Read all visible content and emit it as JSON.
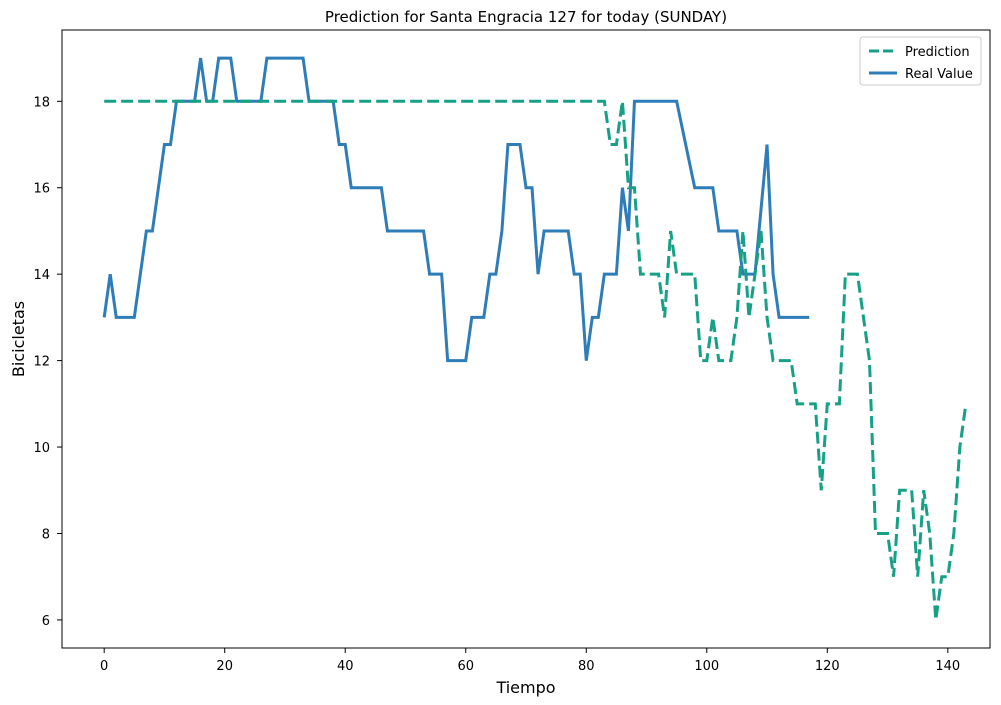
{
  "chart_data": {
    "type": "line",
    "title": "Prediction for Santa Engracia 127 for today (SUNDAY)",
    "xlabel": "Tiempo",
    "ylabel": "Bicicletas",
    "xlim": [
      -7,
      147
    ],
    "ylim": [
      5.35,
      19.65
    ],
    "xticks": [
      0,
      20,
      40,
      60,
      80,
      100,
      120,
      140
    ],
    "yticks": [
      6,
      8,
      10,
      12,
      14,
      16,
      18
    ],
    "grid": false,
    "legend_position": "top-right",
    "series": [
      {
        "name": "Prediction",
        "color": "#16a085",
        "style": "dashed",
        "points": [
          [
            0,
            18
          ],
          [
            83,
            18
          ],
          [
            84,
            17
          ],
          [
            85,
            17
          ],
          [
            86,
            18
          ],
          [
            87,
            16
          ],
          [
            88,
            16
          ],
          [
            89,
            14
          ],
          [
            91,
            14
          ],
          [
            92,
            14
          ],
          [
            93,
            13
          ],
          [
            94,
            15
          ],
          [
            95,
            14
          ],
          [
            98,
            14
          ],
          [
            99,
            12
          ],
          [
            100,
            12
          ],
          [
            101,
            13
          ],
          [
            102,
            12
          ],
          [
            104,
            12
          ],
          [
            105,
            13
          ],
          [
            106,
            15
          ],
          [
            107,
            13
          ],
          [
            108,
            14
          ],
          [
            109,
            15
          ],
          [
            110,
            13
          ],
          [
            111,
            12
          ],
          [
            113,
            12
          ],
          [
            114,
            12
          ],
          [
            115,
            11
          ],
          [
            117,
            11
          ],
          [
            118,
            11
          ],
          [
            119,
            9
          ],
          [
            120,
            11
          ],
          [
            122,
            11
          ],
          [
            123,
            14
          ],
          [
            125,
            14
          ],
          [
            127,
            12
          ],
          [
            128,
            8
          ],
          [
            130,
            8
          ],
          [
            131,
            7
          ],
          [
            132,
            9
          ],
          [
            134,
            9
          ],
          [
            135,
            7
          ],
          [
            136,
            9
          ],
          [
            137,
            8
          ],
          [
            138,
            6
          ],
          [
            139,
            7
          ],
          [
            140,
            7
          ],
          [
            141,
            8
          ],
          [
            142,
            10
          ],
          [
            143,
            11
          ]
        ]
      },
      {
        "name": "Real Value",
        "color": "#2e7db8",
        "style": "solid",
        "points": [
          [
            0,
            13
          ],
          [
            1,
            14
          ],
          [
            2,
            13
          ],
          [
            5,
            13
          ],
          [
            7,
            15
          ],
          [
            8,
            15
          ],
          [
            10,
            17
          ],
          [
            11,
            17
          ],
          [
            12,
            18
          ],
          [
            15,
            18
          ],
          [
            16,
            19
          ],
          [
            17,
            18
          ],
          [
            18,
            18
          ],
          [
            19,
            19
          ],
          [
            21,
            19
          ],
          [
            22,
            18
          ],
          [
            26,
            18
          ],
          [
            27,
            19
          ],
          [
            33,
            19
          ],
          [
            34,
            18
          ],
          [
            38,
            18
          ],
          [
            39,
            17
          ],
          [
            40,
            17
          ],
          [
            41,
            16
          ],
          [
            46,
            16
          ],
          [
            47,
            15
          ],
          [
            53,
            15
          ],
          [
            54,
            14
          ],
          [
            56,
            14
          ],
          [
            57,
            12
          ],
          [
            60,
            12
          ],
          [
            61,
            13
          ],
          [
            63,
            13
          ],
          [
            64,
            14
          ],
          [
            65,
            14
          ],
          [
            66,
            15
          ],
          [
            67,
            17
          ],
          [
            69,
            17
          ],
          [
            70,
            16
          ],
          [
            71,
            16
          ],
          [
            72,
            14
          ],
          [
            73,
            15
          ],
          [
            77,
            15
          ],
          [
            78,
            14
          ],
          [
            79,
            14
          ],
          [
            80,
            12
          ],
          [
            81,
            13
          ],
          [
            82,
            13
          ],
          [
            83,
            14
          ],
          [
            85,
            14
          ],
          [
            86,
            16
          ],
          [
            87,
            15
          ],
          [
            88,
            18
          ],
          [
            95,
            18
          ],
          [
            98,
            16
          ],
          [
            101,
            16
          ],
          [
            102,
            15
          ],
          [
            105,
            15
          ],
          [
            106,
            14
          ],
          [
            108,
            14
          ],
          [
            110,
            17
          ],
          [
            111,
            14
          ],
          [
            112,
            13
          ],
          [
            117,
            13
          ]
        ]
      }
    ]
  }
}
